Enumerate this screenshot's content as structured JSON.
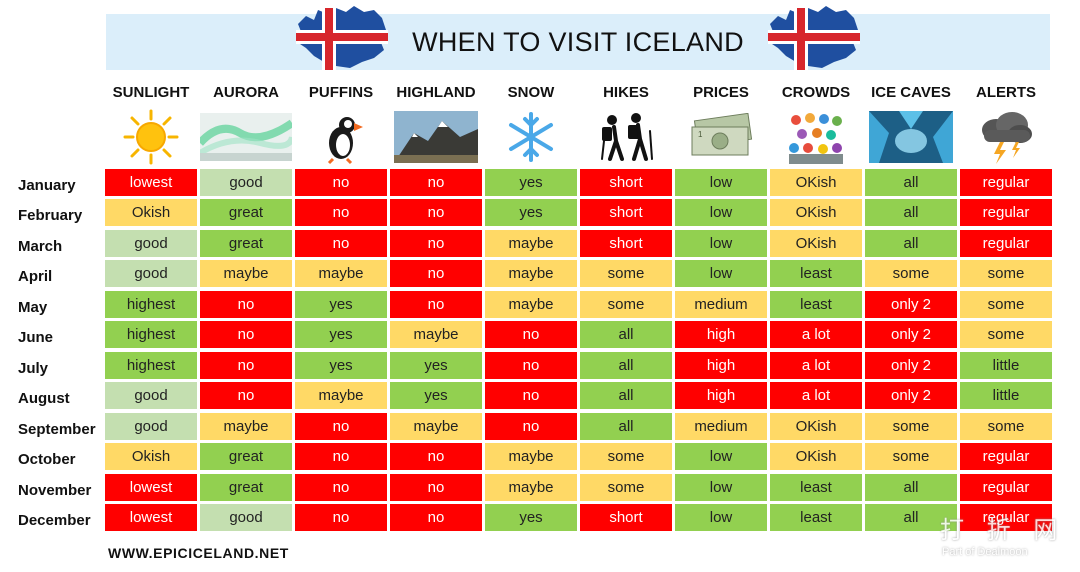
{
  "title": "WHEN TO VISIT ICELAND",
  "footer": "WWW.EPICICELAND.NET",
  "watermark": {
    "main": "打 折 网",
    "sub": "Part of Dealmoon"
  },
  "colors": {
    "red": "#ff0000",
    "yellow": "#ffd966",
    "light_green": "#c4dfb0",
    "green": "#92d050",
    "banner": "#dbeefa"
  },
  "columns": [
    {
      "label": "SUNLIGHT",
      "icon": "sun-icon"
    },
    {
      "label": "AURORA",
      "icon": "aurora-icon"
    },
    {
      "label": "PUFFINS",
      "icon": "puffin-icon"
    },
    {
      "label": "HIGHLAND",
      "icon": "mountain-icon"
    },
    {
      "label": "SNOW",
      "icon": "snowflake-icon"
    },
    {
      "label": "HIKES",
      "icon": "hikers-icon"
    },
    {
      "label": "PRICES",
      "icon": "money-icon"
    },
    {
      "label": "CROWDS",
      "icon": "crowd-icon"
    },
    {
      "label": "ICE CAVES",
      "icon": "ice-cave-icon"
    },
    {
      "label": "ALERTS",
      "icon": "storm-icon"
    }
  ],
  "rows": [
    {
      "month": "January",
      "cells": [
        {
          "text": "lowest",
          "color": "red"
        },
        {
          "text": "good",
          "color": "lgreen"
        },
        {
          "text": "no",
          "color": "red"
        },
        {
          "text": "no",
          "color": "red"
        },
        {
          "text": "yes",
          "color": "green"
        },
        {
          "text": "short",
          "color": "red"
        },
        {
          "text": "low",
          "color": "green"
        },
        {
          "text": "OKish",
          "color": "yellow"
        },
        {
          "text": "all",
          "color": "green"
        },
        {
          "text": "regular",
          "color": "red"
        }
      ]
    },
    {
      "month": "February",
      "cells": [
        {
          "text": "Okish",
          "color": "yellow"
        },
        {
          "text": "great",
          "color": "green"
        },
        {
          "text": "no",
          "color": "red"
        },
        {
          "text": "no",
          "color": "red"
        },
        {
          "text": "yes",
          "color": "green"
        },
        {
          "text": "short",
          "color": "red"
        },
        {
          "text": "low",
          "color": "green"
        },
        {
          "text": "OKish",
          "color": "yellow"
        },
        {
          "text": "all",
          "color": "green"
        },
        {
          "text": "regular",
          "color": "red"
        }
      ]
    },
    {
      "month": "March",
      "cells": [
        {
          "text": "good",
          "color": "lgreen"
        },
        {
          "text": "great",
          "color": "green"
        },
        {
          "text": "no",
          "color": "red"
        },
        {
          "text": "no",
          "color": "red"
        },
        {
          "text": "maybe",
          "color": "yellow"
        },
        {
          "text": "short",
          "color": "red"
        },
        {
          "text": "low",
          "color": "green"
        },
        {
          "text": "OKish",
          "color": "yellow"
        },
        {
          "text": "all",
          "color": "green"
        },
        {
          "text": "regular",
          "color": "red"
        }
      ]
    },
    {
      "month": "April",
      "cells": [
        {
          "text": "good",
          "color": "lgreen"
        },
        {
          "text": "maybe",
          "color": "yellow"
        },
        {
          "text": "maybe",
          "color": "yellow"
        },
        {
          "text": "no",
          "color": "red"
        },
        {
          "text": "maybe",
          "color": "yellow"
        },
        {
          "text": "some",
          "color": "yellow"
        },
        {
          "text": "low",
          "color": "green"
        },
        {
          "text": "least",
          "color": "green"
        },
        {
          "text": "some",
          "color": "yellow"
        },
        {
          "text": "some",
          "color": "yellow"
        }
      ]
    },
    {
      "month": "May",
      "cells": [
        {
          "text": "highest",
          "color": "green"
        },
        {
          "text": "no",
          "color": "red"
        },
        {
          "text": "yes",
          "color": "green"
        },
        {
          "text": "no",
          "color": "red"
        },
        {
          "text": "maybe",
          "color": "yellow"
        },
        {
          "text": "some",
          "color": "yellow"
        },
        {
          "text": "medium",
          "color": "yellow"
        },
        {
          "text": "least",
          "color": "green"
        },
        {
          "text": "only 2",
          "color": "red"
        },
        {
          "text": "some",
          "color": "yellow"
        }
      ]
    },
    {
      "month": "June",
      "cells": [
        {
          "text": "highest",
          "color": "green"
        },
        {
          "text": "no",
          "color": "red"
        },
        {
          "text": "yes",
          "color": "green"
        },
        {
          "text": "maybe",
          "color": "yellow"
        },
        {
          "text": "no",
          "color": "red"
        },
        {
          "text": "all",
          "color": "green"
        },
        {
          "text": "high",
          "color": "red"
        },
        {
          "text": "a lot",
          "color": "red"
        },
        {
          "text": "only 2",
          "color": "red"
        },
        {
          "text": "some",
          "color": "yellow"
        }
      ]
    },
    {
      "month": "July",
      "cells": [
        {
          "text": "highest",
          "color": "green"
        },
        {
          "text": "no",
          "color": "red"
        },
        {
          "text": "yes",
          "color": "green"
        },
        {
          "text": "yes",
          "color": "green"
        },
        {
          "text": "no",
          "color": "red"
        },
        {
          "text": "all",
          "color": "green"
        },
        {
          "text": "high",
          "color": "red"
        },
        {
          "text": "a lot",
          "color": "red"
        },
        {
          "text": "only 2",
          "color": "red"
        },
        {
          "text": "little",
          "color": "green"
        }
      ]
    },
    {
      "month": "August",
      "cells": [
        {
          "text": "good",
          "color": "lgreen"
        },
        {
          "text": "no",
          "color": "red"
        },
        {
          "text": "maybe",
          "color": "yellow"
        },
        {
          "text": "yes",
          "color": "green"
        },
        {
          "text": "no",
          "color": "red"
        },
        {
          "text": "all",
          "color": "green"
        },
        {
          "text": "high",
          "color": "red"
        },
        {
          "text": "a lot",
          "color": "red"
        },
        {
          "text": "only 2",
          "color": "red"
        },
        {
          "text": "little",
          "color": "green"
        }
      ]
    },
    {
      "month": "September",
      "cells": [
        {
          "text": "good",
          "color": "lgreen"
        },
        {
          "text": "maybe",
          "color": "yellow"
        },
        {
          "text": "no",
          "color": "red"
        },
        {
          "text": "maybe",
          "color": "yellow"
        },
        {
          "text": "no",
          "color": "red"
        },
        {
          "text": "all",
          "color": "green"
        },
        {
          "text": "medium",
          "color": "yellow"
        },
        {
          "text": "OKish",
          "color": "yellow"
        },
        {
          "text": "some",
          "color": "yellow"
        },
        {
          "text": "some",
          "color": "yellow"
        }
      ]
    },
    {
      "month": "October",
      "cells": [
        {
          "text": "Okish",
          "color": "yellow"
        },
        {
          "text": "great",
          "color": "green"
        },
        {
          "text": "no",
          "color": "red"
        },
        {
          "text": "no",
          "color": "red"
        },
        {
          "text": "maybe",
          "color": "yellow"
        },
        {
          "text": "some",
          "color": "yellow"
        },
        {
          "text": "low",
          "color": "green"
        },
        {
          "text": "OKish",
          "color": "yellow"
        },
        {
          "text": "some",
          "color": "yellow"
        },
        {
          "text": "regular",
          "color": "red"
        }
      ]
    },
    {
      "month": "November",
      "cells": [
        {
          "text": "lowest",
          "color": "red"
        },
        {
          "text": "great",
          "color": "green"
        },
        {
          "text": "no",
          "color": "red"
        },
        {
          "text": "no",
          "color": "red"
        },
        {
          "text": "maybe",
          "color": "yellow"
        },
        {
          "text": "some",
          "color": "yellow"
        },
        {
          "text": "low",
          "color": "green"
        },
        {
          "text": "least",
          "color": "green"
        },
        {
          "text": "all",
          "color": "green"
        },
        {
          "text": "regular",
          "color": "red"
        }
      ]
    },
    {
      "month": "December",
      "cells": [
        {
          "text": "lowest",
          "color": "red"
        },
        {
          "text": "good",
          "color": "lgreen"
        },
        {
          "text": "no",
          "color": "red"
        },
        {
          "text": "no",
          "color": "red"
        },
        {
          "text": "yes",
          "color": "green"
        },
        {
          "text": "short",
          "color": "red"
        },
        {
          "text": "low",
          "color": "green"
        },
        {
          "text": "least",
          "color": "green"
        },
        {
          "text": "all",
          "color": "green"
        },
        {
          "text": "regular",
          "color": "red"
        }
      ]
    }
  ]
}
